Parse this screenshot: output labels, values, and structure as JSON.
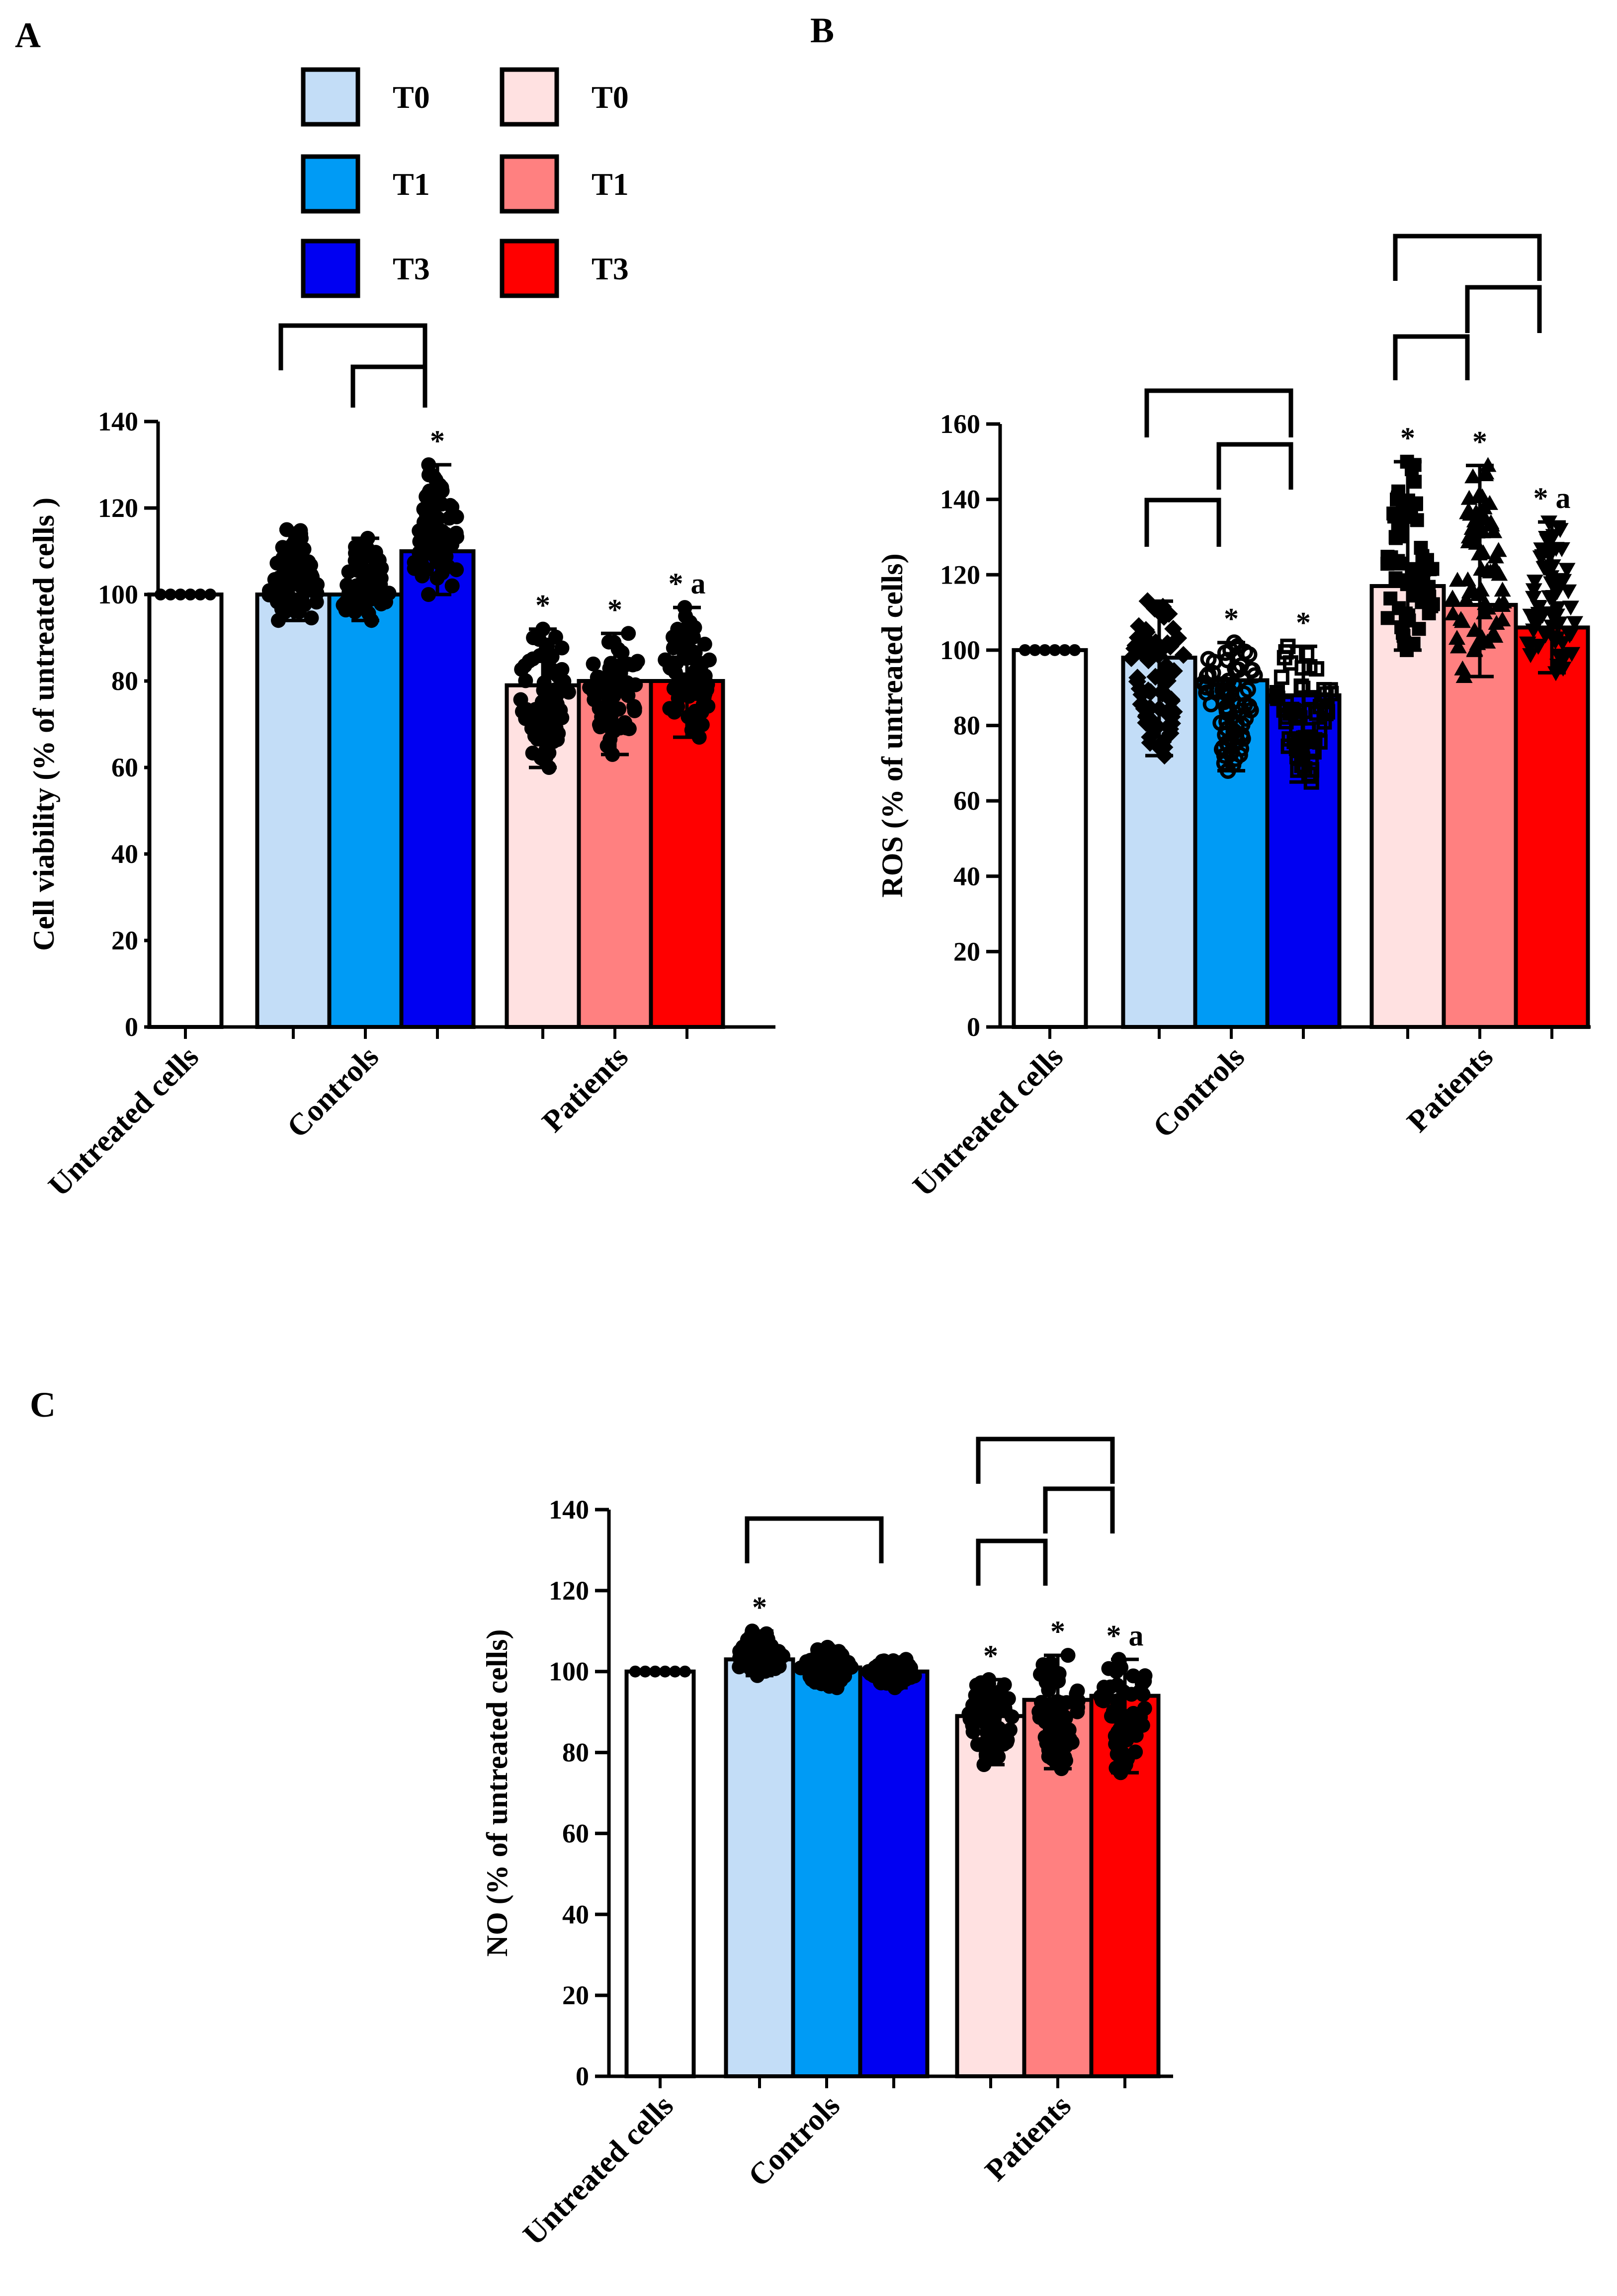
{
  "legend": {
    "controls": [
      {
        "label": "T0",
        "color": "#C3DDF7"
      },
      {
        "label": "T1",
        "color": "#009BF5"
      },
      {
        "label": "T3",
        "color": "#0000F2"
      }
    ],
    "patients": [
      {
        "label": "T0",
        "color": "#FFE1E1"
      },
      {
        "label": "T1",
        "color": "#FF8080"
      },
      {
        "label": "T3",
        "color": "#FF0000"
      }
    ]
  },
  "chart_data": [
    {
      "panel": "A",
      "type": "bar",
      "ylabel": "Cell viability (% of untreated cells )",
      "ylim": [
        0,
        140
      ],
      "yticks": [
        0,
        20,
        40,
        60,
        80,
        100,
        120,
        140
      ],
      "groups": [
        "Untreated cells",
        "Controls",
        "Patients"
      ],
      "bars": [
        {
          "group": "Untreated cells",
          "series": "Untreated",
          "value": 100,
          "err": [
            100,
            100
          ],
          "color": "#FFFFFF",
          "marker": "none",
          "label": ""
        },
        {
          "group": "Controls",
          "series": "T0",
          "value": 100,
          "err": [
            94,
            115
          ],
          "color": "#C3DDF7",
          "marker": "circle",
          "label": ""
        },
        {
          "group": "Controls",
          "series": "T1",
          "value": 100,
          "err": [
            94,
            113
          ],
          "color": "#009BF5",
          "marker": "circle",
          "label": ""
        },
        {
          "group": "Controls",
          "series": "T3",
          "value": 110,
          "err": [
            100,
            130
          ],
          "color": "#0000F2",
          "marker": "circle",
          "label": "*"
        },
        {
          "group": "Patients",
          "series": "T0",
          "value": 79,
          "err": [
            60,
            92
          ],
          "color": "#FFE1E1",
          "marker": "circle",
          "label": "*"
        },
        {
          "group": "Patients",
          "series": "T1",
          "value": 80,
          "err": [
            63,
            91
          ],
          "color": "#FF8080",
          "marker": "circle",
          "label": "*"
        },
        {
          "group": "Patients",
          "series": "T3",
          "value": 80,
          "err": [
            67,
            97
          ],
          "color": "#FF0000",
          "marker": "circle",
          "label": "* a"
        }
      ],
      "brackets": [
        [
          1,
          3
        ],
        [
          2,
          3
        ]
      ]
    },
    {
      "panel": "B",
      "type": "bar",
      "ylabel": "ROS (% of untreated cells)",
      "ylim": [
        0,
        160
      ],
      "yticks": [
        0,
        20,
        40,
        60,
        80,
        100,
        120,
        140,
        160
      ],
      "groups": [
        "Untreated cells",
        "Controls",
        "Patients"
      ],
      "bars": [
        {
          "group": "Untreated cells",
          "series": "Untreated",
          "value": 100,
          "err": [
            100,
            100
          ],
          "color": "#FFFFFF",
          "marker": "none",
          "label": ""
        },
        {
          "group": "Controls",
          "series": "T0",
          "value": 98,
          "err": [
            72,
            113
          ],
          "color": "#C3DDF7",
          "marker": "diamond",
          "label": ""
        },
        {
          "group": "Controls",
          "series": "T1",
          "value": 92,
          "err": [
            68,
            102
          ],
          "color": "#009BF5",
          "marker": "ring",
          "label": "*"
        },
        {
          "group": "Controls",
          "series": "T3",
          "value": 88,
          "err": [
            65,
            101
          ],
          "color": "#0000F2",
          "marker": "hollow-square",
          "label": "*"
        },
        {
          "group": "Patients",
          "series": "T0",
          "value": 117,
          "err": [
            100,
            150
          ],
          "color": "#FFE1E1",
          "marker": "square",
          "label": "*"
        },
        {
          "group": "Patients",
          "series": "T1",
          "value": 112,
          "err": [
            93,
            149
          ],
          "color": "#FF8080",
          "marker": "triangle",
          "label": "*"
        },
        {
          "group": "Patients",
          "series": "T3",
          "value": 106,
          "err": [
            94,
            134
          ],
          "color": "#FF0000",
          "marker": "triangle-down",
          "label": "* a"
        }
      ],
      "brackets": [
        [
          1,
          3
        ],
        [
          2,
          3
        ],
        [
          1,
          2
        ],
        [
          4,
          5
        ],
        [
          4,
          6
        ],
        [
          5,
          6
        ]
      ]
    },
    {
      "panel": "C",
      "type": "bar",
      "ylabel": "NO  (% of untreated cells)",
      "ylim": [
        0,
        140
      ],
      "yticks": [
        0,
        20,
        40,
        60,
        80,
        100,
        120,
        140
      ],
      "groups": [
        "Untreated cells",
        "Controls",
        "Patients"
      ],
      "bars": [
        {
          "group": "Untreated cells",
          "series": "Untreated",
          "value": 100,
          "err": [
            100,
            100
          ],
          "color": "#FFFFFF",
          "marker": "none",
          "label": ""
        },
        {
          "group": "Controls",
          "series": "T0",
          "value": 103,
          "err": [
            99,
            110
          ],
          "color": "#C3DDF7",
          "marker": "circle",
          "label": "*"
        },
        {
          "group": "Controls",
          "series": "T1",
          "value": 101,
          "err": [
            96,
            106
          ],
          "color": "#009BF5",
          "marker": "circle",
          "label": ""
        },
        {
          "group": "Controls",
          "series": "T3",
          "value": 100,
          "err": [
            96,
            103
          ],
          "color": "#0000F2",
          "marker": "circle",
          "label": ""
        },
        {
          "group": "Patients",
          "series": "T0",
          "value": 89,
          "err": [
            77,
            98
          ],
          "color": "#FFE1E1",
          "marker": "circle",
          "label": "*"
        },
        {
          "group": "Patients",
          "series": "T1",
          "value": 93,
          "err": [
            76,
            104
          ],
          "color": "#FF8080",
          "marker": "circle",
          "label": "*"
        },
        {
          "group": "Patients",
          "series": "T3",
          "value": 94,
          "err": [
            75,
            103
          ],
          "color": "#FF0000",
          "marker": "circle",
          "label": "* a"
        }
      ],
      "brackets": [
        [
          1,
          3
        ],
        [
          4,
          5
        ],
        [
          5,
          6
        ],
        [
          4,
          6
        ]
      ]
    }
  ]
}
